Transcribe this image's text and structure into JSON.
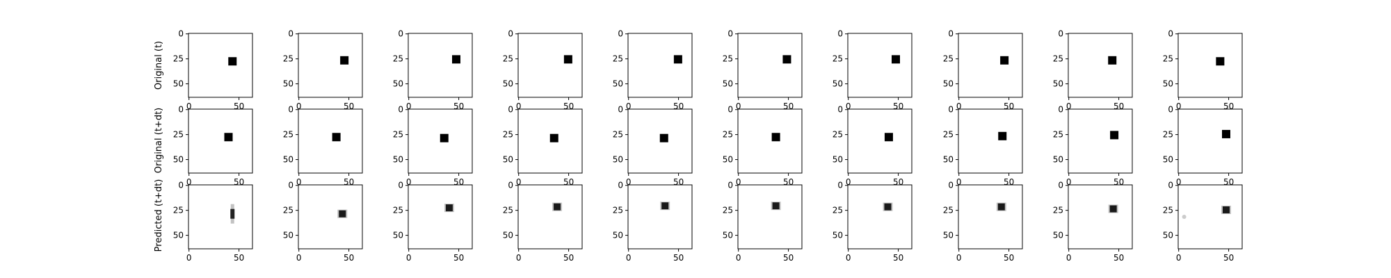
{
  "chart_data": {
    "type": "image-grid",
    "rows": 3,
    "cols": 10,
    "row_labels": [
      "Original (t)",
      "Original (t+dt)",
      "Predicted (t+dt)"
    ],
    "image_size": [
      64,
      64
    ],
    "x_ticks": [
      0,
      50
    ],
    "y_ticks": [
      0,
      25,
      50
    ],
    "x_tick_labels": [
      "0",
      "50"
    ],
    "y_tick_labels": [
      "0",
      "25",
      "50"
    ],
    "colormap": "gray_r",
    "panels": [
      [
        {
          "x": 44,
          "y": 28
        },
        {
          "x": 46,
          "y": 27
        },
        {
          "x": 48,
          "y": 26
        },
        {
          "x": 50,
          "y": 26
        },
        {
          "x": 50,
          "y": 26
        },
        {
          "x": 49,
          "y": 26
        },
        {
          "x": 48,
          "y": 26
        },
        {
          "x": 46,
          "y": 27
        },
        {
          "x": 44,
          "y": 27
        },
        {
          "x": 42,
          "y": 28
        }
      ],
      [
        {
          "x": 40,
          "y": 28
        },
        {
          "x": 38,
          "y": 28
        },
        {
          "x": 36,
          "y": 29
        },
        {
          "x": 36,
          "y": 29
        },
        {
          "x": 36,
          "y": 29
        },
        {
          "x": 38,
          "y": 28
        },
        {
          "x": 41,
          "y": 28
        },
        {
          "x": 44,
          "y": 27
        },
        {
          "x": 46,
          "y": 26
        },
        {
          "x": 48,
          "y": 25
        }
      ],
      [
        {
          "x": 44,
          "y": 29,
          "shape": "vertical-streak"
        },
        {
          "x": 44,
          "y": 29,
          "shape": "blob"
        },
        {
          "x": 41,
          "y": 23,
          "shape": "blob"
        },
        {
          "x": 39,
          "y": 22,
          "shape": "blob"
        },
        {
          "x": 37,
          "y": 21,
          "shape": "blob"
        },
        {
          "x": 38,
          "y": 21,
          "shape": "blob"
        },
        {
          "x": 40,
          "y": 22,
          "shape": "blob"
        },
        {
          "x": 43,
          "y": 22,
          "shape": "blob"
        },
        {
          "x": 45,
          "y": 24,
          "shape": "blob"
        },
        {
          "x": 48,
          "y": 25,
          "shape": "blob",
          "ghost_x": 6,
          "ghost_y": 32
        }
      ]
    ]
  }
}
